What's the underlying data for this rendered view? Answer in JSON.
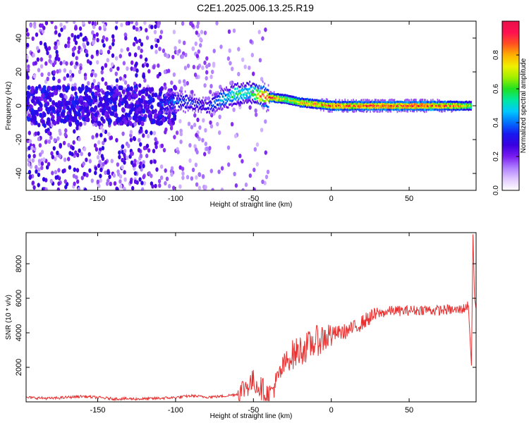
{
  "title": "C2E1.2025.006.13.25.R19",
  "colors": {
    "snr_line": "#e83030",
    "colormap": [
      "#ffffff",
      "#e0c8ff",
      "#b080ff",
      "#7a1cf0",
      "#3a00e0",
      "#1818f0",
      "#0070ff",
      "#00c8ff",
      "#00e8a0",
      "#20e020",
      "#a0f000",
      "#f0f000",
      "#ffb000",
      "#ff5020",
      "#ff1050",
      "#e8104a"
    ]
  },
  "chart_data": [
    {
      "type": "heatmap",
      "title": "",
      "xlabel": "Height of straight line (km)",
      "ylabel": "Frequency (Hz)",
      "xlim": [
        -196,
        93
      ],
      "ylim": [
        -50,
        50
      ],
      "xticks": [
        -150,
        -100,
        -50,
        0,
        50
      ],
      "yticks": [
        -40,
        -20,
        0,
        20,
        40
      ],
      "grid": false,
      "colorbar": {
        "label": "Normalized spectral amplitude",
        "range": [
          0.0,
          1.0
        ],
        "ticks": [
          0.0,
          0.2,
          0.4,
          0.6,
          0.8
        ]
      },
      "ridge_points": {
        "x": [
          -110,
          -100,
          -90,
          -80,
          -70,
          -60,
          -52,
          -45,
          -40,
          -30,
          -20,
          -10,
          0,
          10,
          20,
          30,
          40,
          50,
          60,
          70,
          80,
          90
        ],
        "frequency": [
          1,
          3,
          2,
          -1,
          4,
          7,
          8,
          6,
          5,
          4,
          2,
          1,
          0,
          0,
          0,
          0,
          0,
          0,
          0,
          0,
          0,
          0
        ],
        "amplitude": [
          0.35,
          0.4,
          0.35,
          0.3,
          0.5,
          0.6,
          0.55,
          0.85,
          0.95,
          0.7,
          0.8,
          0.85,
          0.9,
          0.9,
          0.95,
          0.95,
          0.95,
          0.95,
          0.95,
          0.9,
          0.85,
          0.7
        ]
      }
    },
    {
      "type": "line",
      "title": "",
      "xlabel": "Height of straight line (km)",
      "ylabel": "SNR (10 * v/v)",
      "xlim": [
        -196,
        93
      ],
      "ylim": [
        0,
        9800
      ],
      "xticks": [
        -150,
        -100,
        -50,
        0,
        50
      ],
      "yticks": [
        2000,
        4000,
        6000,
        8000
      ],
      "grid": false,
      "series": [
        {
          "x": [
            -196,
            -180,
            -160,
            -140,
            -120,
            -100,
            -90,
            -80,
            -70,
            -60,
            -55,
            -50,
            -45,
            -40,
            -35,
            -30,
            -25,
            -20,
            -15,
            -10,
            -5,
            0,
            5,
            10,
            15,
            20,
            25,
            30,
            35,
            40,
            45,
            50,
            55,
            60,
            65,
            70,
            75,
            80,
            85,
            88,
            90,
            91,
            92,
            93
          ],
          "values": [
            250,
            200,
            320,
            180,
            170,
            250,
            350,
            280,
            320,
            450,
            900,
            1200,
            800,
            350,
            1200,
            2200,
            2700,
            3000,
            3200,
            3500,
            3700,
            3900,
            4000,
            4100,
            4300,
            4600,
            4900,
            5100,
            5200,
            5300,
            5250,
            5300,
            5300,
            5350,
            5300,
            5300,
            5350,
            5300,
            5400,
            5600,
            2100,
            9700,
            6000,
            5400
          ]
        }
      ]
    }
  ]
}
